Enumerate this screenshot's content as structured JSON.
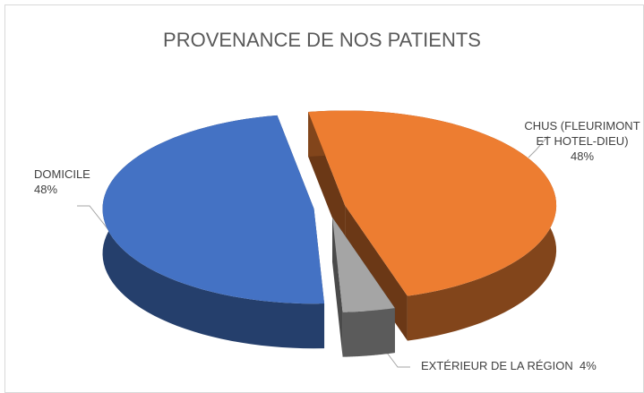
{
  "chart_data": {
    "type": "pie3d",
    "title": "PROVENANCE DE NOS PATIENTS",
    "categories": [
      "CHUS (FLEURIMONT ET HOTEL-DIEU)",
      "EXTÉRIEUR DE LA RÉGION",
      "DOMICILE"
    ],
    "values": [
      48,
      4,
      48
    ],
    "value_labels": [
      "48%",
      "4%",
      "48%"
    ],
    "colors": [
      "#ED7D31",
      "#A5A5A5",
      "#4472C4"
    ]
  }
}
